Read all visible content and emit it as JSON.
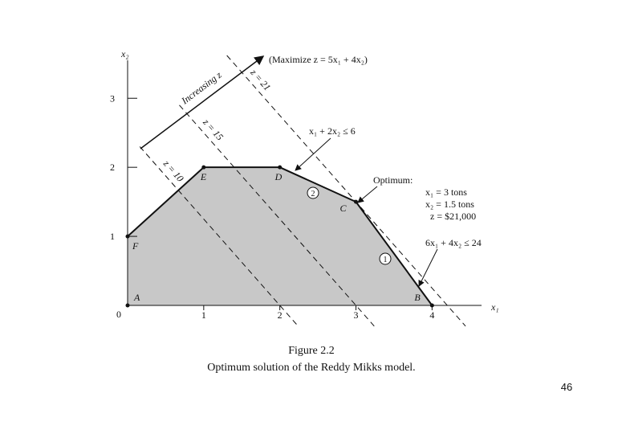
{
  "figure": {
    "x_label": "x₁",
    "y_label": "x₂",
    "origin_label": "0",
    "xlim": [
      0,
      4.65
    ],
    "ylim": [
      0,
      3.55
    ],
    "xticks": [
      1,
      2,
      3,
      4
    ],
    "yticks": [
      1,
      2,
      3
    ],
    "vertices": [
      {
        "label": "A",
        "x": 0,
        "y": 0
      },
      {
        "label": "B",
        "x": 4,
        "y": 0
      },
      {
        "label": "C",
        "x": 3,
        "y": 1.5
      },
      {
        "label": "D",
        "x": 2,
        "y": 2
      },
      {
        "label": "E",
        "x": 1,
        "y": 2
      },
      {
        "label": "F",
        "x": 0,
        "y": 1
      }
    ],
    "objective": {
      "text": "(Maximize z = 5x₁ + 4x₂)",
      "cx": 5,
      "cy": 4
    },
    "objective_lines": [
      {
        "label": "z = 10",
        "z": 10
      },
      {
        "label": "z = 15",
        "z": 15
      },
      {
        "label": "z = 21",
        "z": 21
      }
    ],
    "direction_label": "Increasing z",
    "constraints": [
      {
        "marker": "1",
        "text": "6x₁ + 4x₂ ≤ 24"
      },
      {
        "marker": "2",
        "text": "x₁ + 2x₂ ≤ 6"
      }
    ],
    "optimum": [
      "Optimum:",
      "x₁ = 3 tons",
      "x₂ = 1.5 tons",
      "z = $21,000"
    ],
    "caption": {
      "title": "Figure 2.2",
      "text": "Optimum solution of the Reddy Mikks model."
    },
    "page_number": "46"
  }
}
